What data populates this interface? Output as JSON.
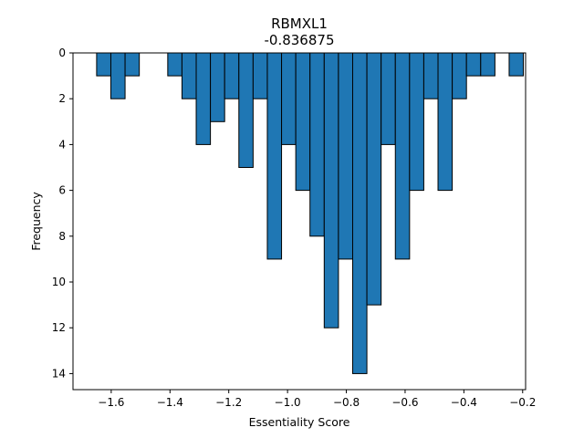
{
  "chart_data": {
    "type": "bar",
    "title": "RBMXL1",
    "subtitle": "-0.836875",
    "xlabel": "Essentiality Score",
    "ylabel": "Frequency",
    "bar_color": "#1f77b4",
    "edge_color": "#000000",
    "y_inverted": true,
    "xlim": [
      -1.73,
      -0.19
    ],
    "ylim": [
      0,
      14.7
    ],
    "x_ticks": [
      {
        "value": -1.6,
        "label": "−1.6"
      },
      {
        "value": -1.4,
        "label": "−1.4"
      },
      {
        "value": -1.2,
        "label": "−1.2"
      },
      {
        "value": -1.0,
        "label": "−1.0"
      },
      {
        "value": -0.8,
        "label": "−0.8"
      },
      {
        "value": -0.6,
        "label": "−0.6"
      },
      {
        "value": -0.4,
        "label": "−0.4"
      },
      {
        "value": -0.2,
        "label": "−0.2"
      }
    ],
    "y_ticks": [
      {
        "value": 0,
        "label": "0"
      },
      {
        "value": 2,
        "label": "2"
      },
      {
        "value": 4,
        "label": "4"
      },
      {
        "value": 6,
        "label": "6"
      },
      {
        "value": 8,
        "label": "8"
      },
      {
        "value": 10,
        "label": "10"
      },
      {
        "value": 12,
        "label": "12"
      },
      {
        "value": 14,
        "label": "14"
      }
    ],
    "bin_width": 0.0484,
    "bins": [
      {
        "x": -1.6496,
        "count": 1
      },
      {
        "x": -1.6012,
        "count": 2
      },
      {
        "x": -1.5528,
        "count": 1
      },
      {
        "x": -1.5044,
        "count": 0
      },
      {
        "x": -1.456,
        "count": 0
      },
      {
        "x": -1.4076,
        "count": 1
      },
      {
        "x": -1.3592,
        "count": 2
      },
      {
        "x": -1.3108,
        "count": 4
      },
      {
        "x": -1.2624,
        "count": 3
      },
      {
        "x": -1.214,
        "count": 2
      },
      {
        "x": -1.1656,
        "count": 5
      },
      {
        "x": -1.1172,
        "count": 2
      },
      {
        "x": -1.0688,
        "count": 9
      },
      {
        "x": -1.0204,
        "count": 4
      },
      {
        "x": -0.972,
        "count": 6
      },
      {
        "x": -0.9236,
        "count": 8
      },
      {
        "x": -0.8752,
        "count": 12
      },
      {
        "x": -0.8268,
        "count": 9
      },
      {
        "x": -0.7784,
        "count": 14
      },
      {
        "x": -0.73,
        "count": 11
      },
      {
        "x": -0.6816,
        "count": 4
      },
      {
        "x": -0.6332,
        "count": 9
      },
      {
        "x": -0.5848,
        "count": 6
      },
      {
        "x": -0.5364,
        "count": 2
      },
      {
        "x": -0.488,
        "count": 6
      },
      {
        "x": -0.4396,
        "count": 2
      },
      {
        "x": -0.3912,
        "count": 1
      },
      {
        "x": -0.3428,
        "count": 1
      },
      {
        "x": -0.2944,
        "count": 0
      },
      {
        "x": -0.246,
        "count": 1
      }
    ]
  }
}
